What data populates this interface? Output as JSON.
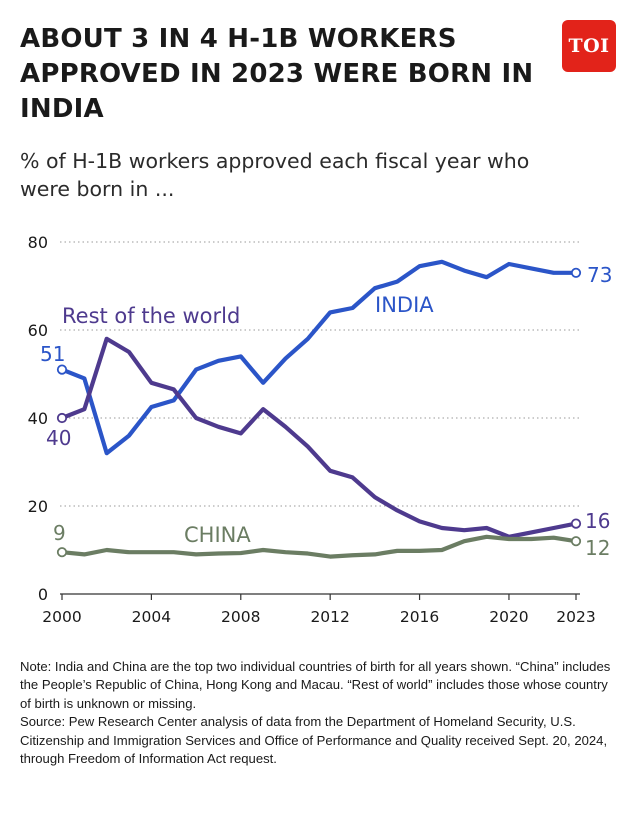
{
  "title": "ABOUT 3 IN 4 H-1B WORKERS APPROVED IN 2023 WERE BORN IN INDIA",
  "subtitle": "% of H-1B workers approved each fiscal year who were born in ...",
  "logo_text": "TOI",
  "note": "Note: India and China are the top two individual countries of birth for all years shown. “China” includes the People’s Republic of China, Hong Kong and Macau. “Rest of world” includes those whose country of birth is unknown or missing.",
  "source": "Source: Pew Research Center analysis of data from the Department of Homeland Security, U.S. Citizenship and Immigration Services and Office of Performance and Quality received Sept. 20, 2024, through Freedom of Information Act request.",
  "colors": {
    "india": "#2b55c8",
    "rest": "#4e3a8e",
    "china": "#6b7d63",
    "logo": "#e2231a"
  },
  "chart_data": {
    "type": "line",
    "x": [
      2000,
      2001,
      2002,
      2003,
      2004,
      2005,
      2006,
      2007,
      2008,
      2009,
      2010,
      2011,
      2012,
      2013,
      2014,
      2015,
      2016,
      2017,
      2018,
      2019,
      2020,
      2021,
      2022,
      2023
    ],
    "x_ticks": [
      "2000",
      "2004",
      "2008",
      "2012",
      "2016",
      "2020",
      "2023"
    ],
    "y_ticks": [
      "0",
      "20",
      "40",
      "60",
      "80"
    ],
    "ylim": [
      0,
      80
    ],
    "xlim": [
      2000,
      2023
    ],
    "grid": true,
    "series": [
      {
        "name": "INDIA",
        "color_key": "india",
        "start_label": "51",
        "end_label": "73",
        "values": [
          51,
          49,
          32,
          36,
          42.5,
          44,
          51,
          53,
          54,
          48,
          53.5,
          58,
          64,
          65,
          69.5,
          71,
          74.5,
          75.5,
          73.5,
          72,
          75,
          74,
          73,
          73
        ]
      },
      {
        "name": "Rest of the world",
        "color_key": "rest",
        "start_label": "40",
        "end_label": "16",
        "values": [
          40,
          42,
          58,
          55,
          48,
          46.5,
          40,
          38,
          36.5,
          42,
          38,
          33.5,
          28,
          26.5,
          22,
          19,
          16.5,
          15,
          14.5,
          15,
          13,
          14,
          15,
          16
        ]
      },
      {
        "name": "CHINA",
        "color_key": "china",
        "start_label": "9",
        "end_label": "12",
        "values": [
          9.5,
          9,
          10,
          9.5,
          9.5,
          9.5,
          9,
          9.2,
          9.3,
          10,
          9.5,
          9.2,
          8.5,
          8.8,
          9,
          9.8,
          9.8,
          10,
          12,
          13,
          12.5,
          12.5,
          12.8,
          12
        ]
      }
    ]
  }
}
